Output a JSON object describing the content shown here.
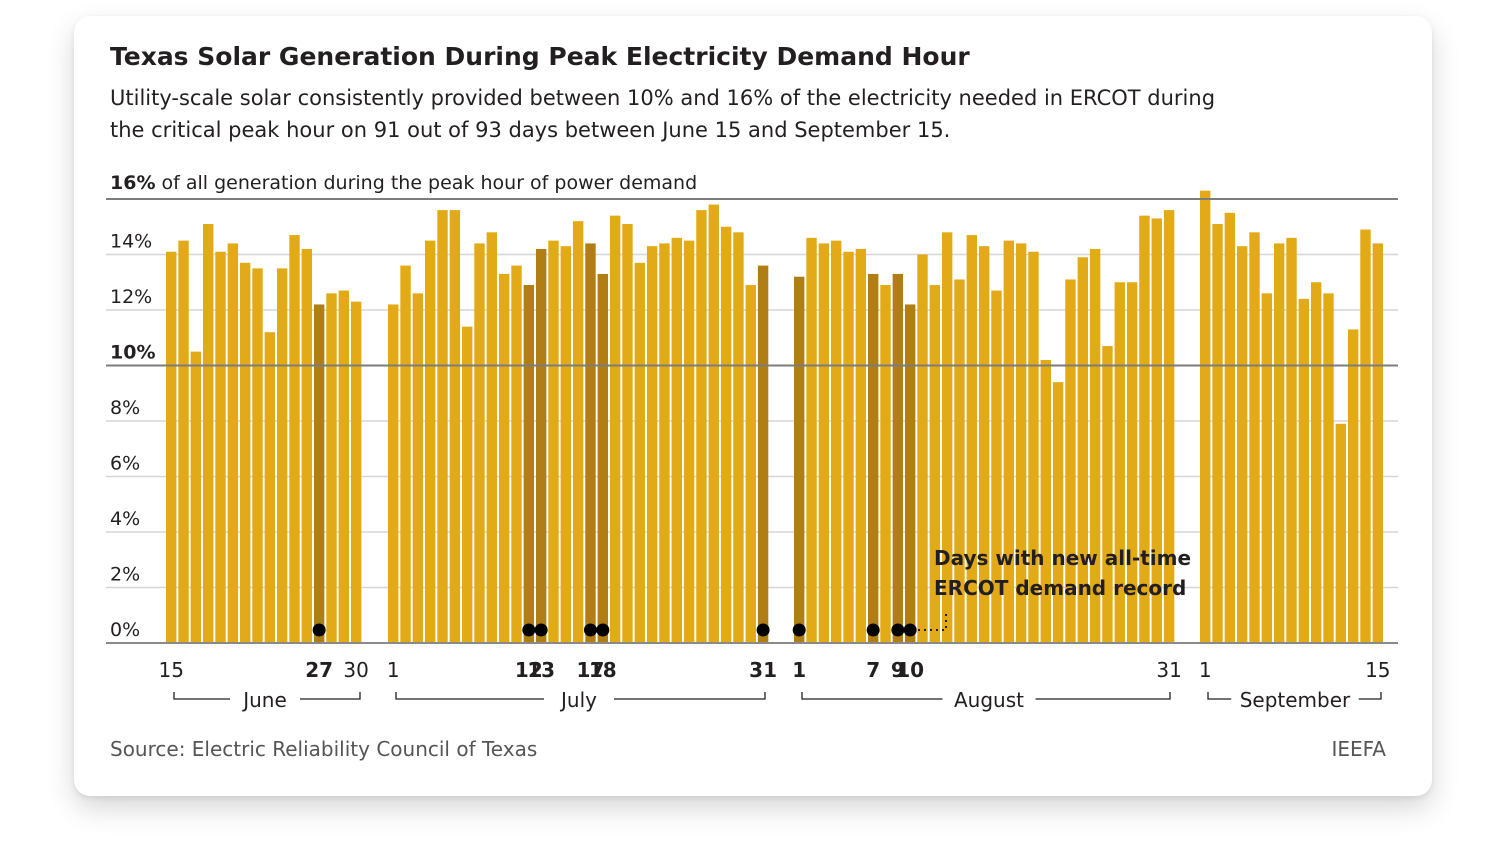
{
  "chart_data": {
    "type": "bar",
    "title": "Texas Solar Generation During Peak Electricity Demand Hour",
    "subtitle_lines": [
      "Utility-scale solar consistently provided between 10% and 16% of the electricity needed in ERCOT during",
      "the critical peak hour on 91 out of 93 days between June 15 and September 15."
    ],
    "ylabel_bold": "16%",
    "ylabel_rest": " of all generation during the peak hour of power demand",
    "ylim": [
      0,
      16
    ],
    "y_ticks": [
      {
        "value": 0,
        "label": "0%",
        "bold": false
      },
      {
        "value": 2,
        "label": "2%",
        "bold": false
      },
      {
        "value": 4,
        "label": "4%",
        "bold": false
      },
      {
        "value": 6,
        "label": "6%",
        "bold": false
      },
      {
        "value": 8,
        "label": "8%",
        "bold": false
      },
      {
        "value": 10,
        "label": "10%",
        "bold": true
      },
      {
        "value": 12,
        "label": "12%",
        "bold": false
      },
      {
        "value": 14,
        "label": "14%",
        "bold": false
      }
    ],
    "months": [
      {
        "name": "June",
        "values": [
          14.1,
          14.5,
          10.5,
          15.1,
          14.1,
          14.4,
          13.7,
          13.5,
          11.2,
          13.5,
          14.7,
          14.2,
          12.2,
          12.6,
          12.7,
          12.3
        ],
        "day_labels": [
          {
            "day": 15,
            "label": "15",
            "bold": false
          },
          {
            "day": 27,
            "label": "27",
            "bold": true
          },
          {
            "day": 30,
            "label": "30",
            "bold": false
          }
        ]
      },
      {
        "name": "July",
        "values": [
          12.2,
          13.6,
          12.6,
          14.5,
          15.6,
          15.6,
          11.4,
          14.4,
          14.8,
          13.3,
          13.6,
          12.9,
          14.2,
          14.5,
          14.3,
          15.2,
          14.4,
          13.3,
          15.4,
          15.1,
          13.7,
          14.3,
          14.4,
          14.6,
          14.5,
          15.6,
          15.8,
          15.0,
          14.8,
          12.9,
          13.6
        ],
        "day_labels": [
          {
            "day": 1,
            "label": "1",
            "bold": false
          },
          {
            "day": 12,
            "label": "12",
            "bold": true
          },
          {
            "day": 13,
            "label": "13",
            "bold": true
          },
          {
            "day": 17,
            "label": "17",
            "bold": true
          },
          {
            "day": 18,
            "label": "18",
            "bold": true
          },
          {
            "day": 31,
            "label": "31",
            "bold": true
          }
        ]
      },
      {
        "name": "August",
        "values": [
          13.2,
          14.6,
          14.4,
          14.5,
          14.1,
          14.2,
          13.3,
          12.9,
          13.3,
          12.2,
          14.0,
          12.9,
          14.8,
          13.1,
          14.7,
          14.3,
          12.7,
          14.5,
          14.4,
          14.1,
          10.2,
          9.4,
          13.1,
          13.9,
          14.2,
          10.7,
          13.0,
          13.0,
          15.4,
          15.3,
          15.6
        ],
        "day_labels": [
          {
            "day": 1,
            "label": "1",
            "bold": true
          },
          {
            "day": 7,
            "label": "7",
            "bold": true
          },
          {
            "day": 9,
            "label": "9",
            "bold": true
          },
          {
            "day": 10,
            "label": "10",
            "bold": true
          },
          {
            "day": 31,
            "label": "31",
            "bold": false
          }
        ]
      },
      {
        "name": "September",
        "values": [
          16.3,
          15.1,
          15.5,
          14.3,
          14.8,
          12.6,
          14.4,
          14.6,
          12.4,
          13.0,
          12.6,
          7.9,
          11.3,
          14.9,
          14.4
        ],
        "day_labels": [
          {
            "day": 1,
            "label": "1",
            "bold": false
          },
          {
            "day": 15,
            "label": "15",
            "bold": false
          }
        ]
      }
    ],
    "record_days": [
      {
        "month": "June",
        "day": 27
      },
      {
        "month": "July",
        "day": 12
      },
      {
        "month": "July",
        "day": 13
      },
      {
        "month": "July",
        "day": 17
      },
      {
        "month": "July",
        "day": 18
      },
      {
        "month": "July",
        "day": 31
      },
      {
        "month": "August",
        "day": 1
      },
      {
        "month": "August",
        "day": 7
      },
      {
        "month": "August",
        "day": 9
      },
      {
        "month": "August",
        "day": 10
      }
    ],
    "annotation_lines": [
      "Days with new all-time",
      "ERCOT demand record"
    ],
    "source": "Source: Electric Reliability Council of Texas",
    "brand": "IEEFA",
    "colors": {
      "bar": "#E2AA16",
      "record_bar": "#B07E14",
      "dot": "#000000",
      "grid": "#D6D6D6",
      "ref_line": "#7C7C7C",
      "text": "#231F20",
      "muted": "#555555"
    }
  }
}
